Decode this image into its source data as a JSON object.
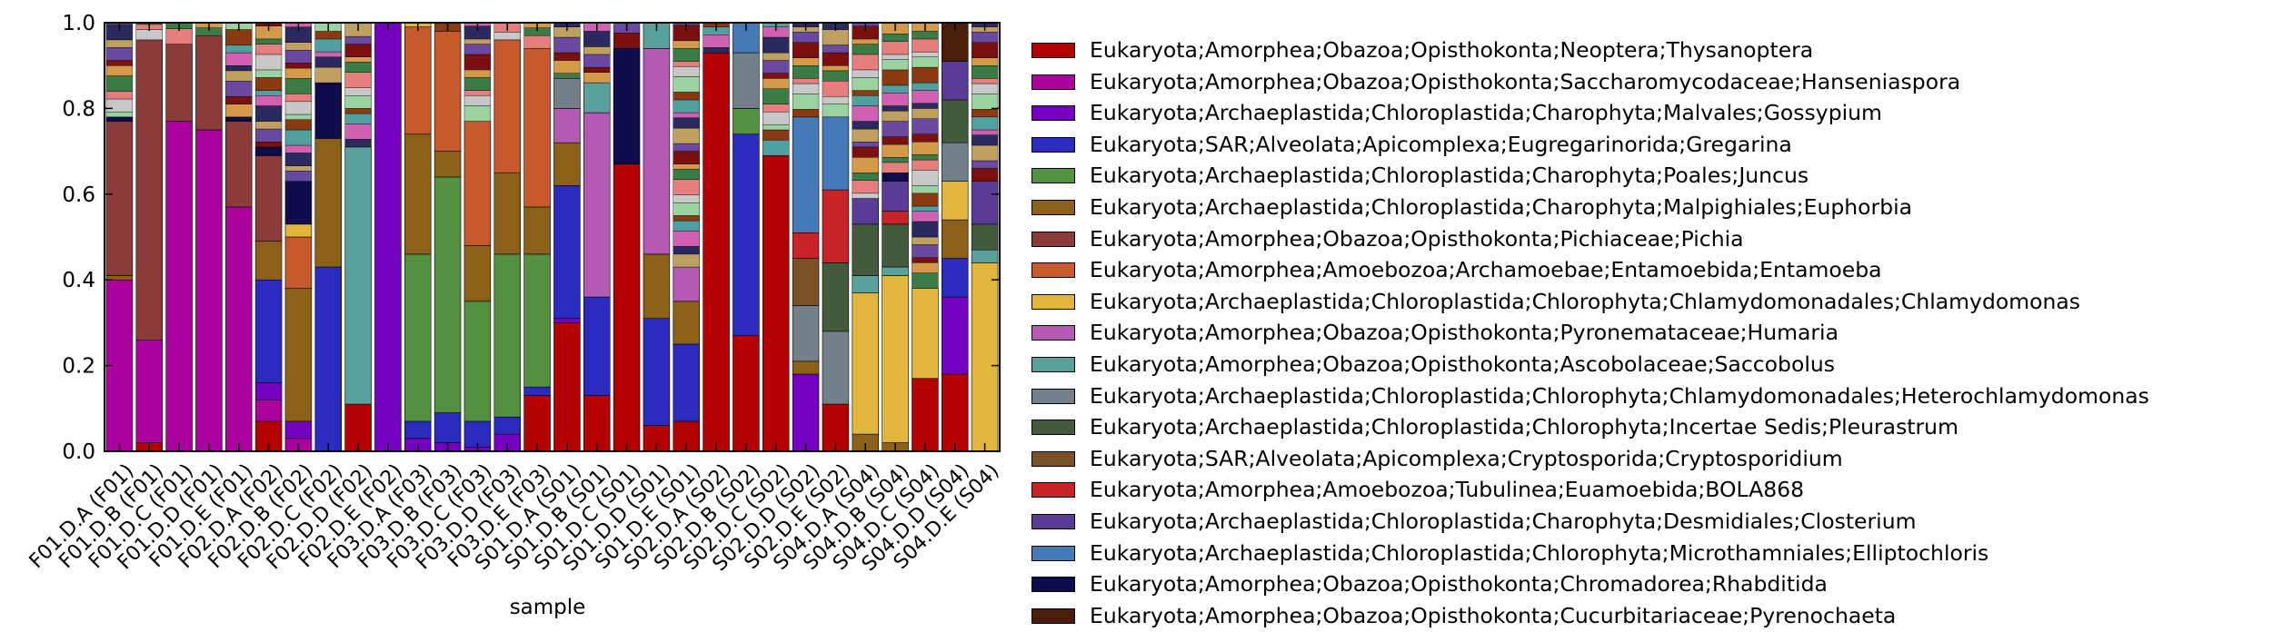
{
  "chart_data": {
    "type": "bar",
    "stacked": true,
    "xlabel": "sample",
    "ylabel": "",
    "ylim": [
      0,
      1
    ],
    "yticks": [
      "0.0",
      "0.2",
      "0.4",
      "0.6",
      "0.8",
      "1.0"
    ],
    "categories": [
      "F01.D.A (F01)",
      "F01.D.B (F01)",
      "F01.D.C (F01)",
      "F01.D.D (F01)",
      "F01.D.E (F01)",
      "F02.D.A (F02)",
      "F02.D.B (F02)",
      "F02.D.C (F02)",
      "F02.D.D (F02)",
      "F02.D.E (F02)",
      "F03.D.A (F03)",
      "F03.D.B (F03)",
      "F03.D.C (F03)",
      "F03.D.D (F03)",
      "F03.D.E (F03)",
      "S01.D.A (S01)",
      "S01.D.B (S01)",
      "S01.D.C (S01)",
      "S01.D.D (S01)",
      "S01.D.E (S01)",
      "S02.D.A (S02)",
      "S02.D.B (S02)",
      "S02.D.C (S02)",
      "S02.D.D (S02)",
      "S02.D.E (S02)",
      "S04.D.A (S04)",
      "S04.D.B (S04)",
      "S04.D.C (S04)",
      "S04.D.D (S04)",
      "S04.D.E (S04)"
    ],
    "series": [
      {
        "name": "Eukaryota;Amorphea;Obazoa;Opisthokonta;Neoptera;Thysanoptera",
        "color": "#b30000",
        "values": [
          0.0,
          0.02,
          0.0,
          0.0,
          0.0,
          0.07,
          0.0,
          0.0,
          0.11,
          0.0,
          0.0,
          0.0,
          0.0,
          0.0,
          0.13,
          0.3,
          0.13,
          0.67,
          0.06,
          0.07,
          0.93,
          0.27,
          0.69,
          0.0,
          0.11,
          0.0,
          0.0,
          0.17,
          0.18,
          0.0
        ]
      },
      {
        "name": "Eukaryota;Amorphea;Obazoa;Opisthokonta;Saccharomycodaceae;Hanseniaspora",
        "color": "#aa009e",
        "values": [
          0.4,
          0.24,
          0.77,
          0.75,
          0.57,
          0.05,
          0.03,
          0.0,
          0.0,
          0.0,
          0.0,
          0.0,
          0.0,
          0.0,
          0.0,
          0.0,
          0.0,
          0.0,
          0.0,
          0.0,
          0.0,
          0.0,
          0.0,
          0.0,
          0.0,
          0.0,
          0.0,
          0.0,
          0.0,
          0.0
        ]
      },
      {
        "name": "Eukaryota;Archaeplastida;Chloroplastida;Charophyta;Malvales;Gossypium",
        "color": "#7400c0",
        "values": [
          0.0,
          0.0,
          0.0,
          0.0,
          0.0,
          0.04,
          0.04,
          0.0,
          0.0,
          1.0,
          0.03,
          0.02,
          0.01,
          0.04,
          0.0,
          0.01,
          0.0,
          0.0,
          0.0,
          0.0,
          0.0,
          0.0,
          0.0,
          0.18,
          0.0,
          0.0,
          0.0,
          0.0,
          0.18,
          0.0
        ]
      },
      {
        "name": "Eukaryota;SAR;Alveolata;Apicomplexa;Eugregarinorida;Gregarina",
        "color": "#2b2bc0",
        "values": [
          0.0,
          0.0,
          0.0,
          0.0,
          0.0,
          0.24,
          0.0,
          0.43,
          0.0,
          0.0,
          0.04,
          0.07,
          0.06,
          0.04,
          0.02,
          0.31,
          0.23,
          0.0,
          0.25,
          0.18,
          0.0,
          0.47,
          0.0,
          0.0,
          0.0,
          0.0,
          0.0,
          0.0,
          0.09,
          0.0
        ]
      },
      {
        "name": "Eukaryota;Archaeplastida;Chloroplastida;Charophyta;Poales;Juncus",
        "color": "#539040",
        "values": [
          0.0,
          0.0,
          0.0,
          0.0,
          0.0,
          0.0,
          0.0,
          0.0,
          0.0,
          0.0,
          0.39,
          0.55,
          0.28,
          0.38,
          0.31,
          0.0,
          0.0,
          0.0,
          0.0,
          0.0,
          0.0,
          0.06,
          0.0,
          0.0,
          0.0,
          0.0,
          0.0,
          0.0,
          0.0,
          0.0
        ]
      },
      {
        "name": "Eukaryota;Archaeplastida;Chloroplastida;Charophyta;Malpighiales;Euphorbia",
        "color": "#8b6018",
        "values": [
          0.01,
          0.0,
          0.0,
          0.0,
          0.0,
          0.09,
          0.31,
          0.3,
          0.0,
          0.0,
          0.28,
          0.06,
          0.13,
          0.19,
          0.11,
          0.1,
          0.0,
          0.0,
          0.15,
          0.1,
          0.0,
          0.0,
          0.0,
          0.03,
          0.0,
          0.04,
          0.02,
          0.0,
          0.09,
          0.0
        ]
      },
      {
        "name": "Eukaryota;Amorphea;Obazoa;Opisthokonta;Pichiaceae;Pichia",
        "color": "#8c3b3b",
        "values": [
          0.36,
          0.7,
          0.18,
          0.22,
          0.2,
          0.2,
          0.0,
          0.0,
          0.0,
          0.0,
          0.0,
          0.0,
          0.0,
          0.0,
          0.0,
          0.0,
          0.0,
          0.0,
          0.0,
          0.0,
          0.0,
          0.0,
          0.0,
          0.0,
          0.0,
          0.0,
          0.0,
          0.0,
          0.0,
          0.0
        ]
      },
      {
        "name": "Eukaryota;Amorphea;Amoebozoa;Archamoebae;Entamoebida;Entamoeba",
        "color": "#c65a2c",
        "values": [
          0.0,
          0.0,
          0.0,
          0.0,
          0.0,
          0.0,
          0.12,
          0.0,
          0.0,
          0.0,
          0.25,
          0.28,
          0.29,
          0.31,
          0.37,
          0.0,
          0.0,
          0.0,
          0.0,
          0.0,
          0.0,
          0.0,
          0.0,
          0.0,
          0.0,
          0.0,
          0.0,
          0.0,
          0.0,
          0.0
        ]
      },
      {
        "name": "Eukaryota;Archaeplastida;Chloroplastida;Chlorophyta;Chlamydomonadales;Chlamydomonas",
        "color": "#e2b53c",
        "values": [
          0.0,
          0.0,
          0.0,
          0.0,
          0.0,
          0.0,
          0.03,
          0.0,
          0.0,
          0.0,
          0.01,
          0.0,
          0.0,
          0.0,
          0.0,
          0.0,
          0.0,
          0.0,
          0.0,
          0.0,
          0.0,
          0.0,
          0.0,
          0.0,
          0.0,
          0.33,
          0.39,
          0.21,
          0.09,
          0.44
        ]
      },
      {
        "name": "Eukaryota;Amorphea;Obazoa;Opisthokonta;Pyronemataceae;Humaria",
        "color": "#b35ab3",
        "values": [
          0.0,
          0.0,
          0.0,
          0.0,
          0.0,
          0.0,
          0.0,
          0.0,
          0.0,
          0.0,
          0.0,
          0.0,
          0.0,
          0.0,
          0.0,
          0.08,
          0.43,
          0.0,
          0.48,
          0.08,
          0.0,
          0.0,
          0.0,
          0.0,
          0.0,
          0.0,
          0.0,
          0.0,
          0.0,
          0.0
        ]
      },
      {
        "name": "Eukaryota;Amorphea;Obazoa;Opisthokonta;Ascobolaceae;Saccobolus",
        "color": "#5aa09b",
        "values": [
          0.0,
          0.0,
          0.0,
          0.0,
          0.0,
          0.0,
          0.0,
          0.0,
          0.6,
          0.0,
          0.0,
          0.0,
          0.0,
          0.0,
          0.0,
          0.0,
          0.07,
          0.0,
          0.06,
          0.0,
          0.0,
          0.0,
          0.0,
          0.0,
          0.0,
          0.04,
          0.02,
          0.0,
          0.0,
          0.03
        ]
      },
      {
        "name": "Eukaryota;Archaeplastida;Chloroplastida;Chlorophyta;Chlamydomonadales;Heterochlamydomonas",
        "color": "#748089",
        "values": [
          0.0,
          0.0,
          0.0,
          0.0,
          0.0,
          0.0,
          0.0,
          0.0,
          0.0,
          0.0,
          0.0,
          0.0,
          0.0,
          0.0,
          0.0,
          0.07,
          0.0,
          0.0,
          0.0,
          0.0,
          0.0,
          0.13,
          0.0,
          0.13,
          0.17,
          0.0,
          0.0,
          0.0,
          0.09,
          0.0
        ]
      },
      {
        "name": "Eukaryota;Archaeplastida;Chloroplastida;Chlorophyta;Incertae Sedis;Pleurastrum",
        "color": "#435a3c",
        "values": [
          0.0,
          0.0,
          0.0,
          0.0,
          0.0,
          0.0,
          0.0,
          0.0,
          0.0,
          0.0,
          0.0,
          0.0,
          0.0,
          0.0,
          0.0,
          0.0,
          0.0,
          0.0,
          0.0,
          0.0,
          0.0,
          0.0,
          0.0,
          0.0,
          0.16,
          0.12,
          0.1,
          0.0,
          0.1,
          0.06
        ]
      },
      {
        "name": "Eukaryota;SAR;Alveolata;Apicomplexa;Cryptosporida;Cryptosporidium",
        "color": "#7a5028",
        "values": [
          0.0,
          0.0,
          0.0,
          0.0,
          0.0,
          0.0,
          0.0,
          0.0,
          0.0,
          0.0,
          0.0,
          0.0,
          0.0,
          0.0,
          0.0,
          0.0,
          0.0,
          0.0,
          0.0,
          0.0,
          0.0,
          0.0,
          0.0,
          0.11,
          0.0,
          0.0,
          0.0,
          0.0,
          0.0,
          0.0
        ]
      },
      {
        "name": "Eukaryota;Amorphea;Amoebozoa;Tubulinea;Euamoebida;BOLA868",
        "color": "#c82428",
        "values": [
          0.0,
          0.0,
          0.0,
          0.0,
          0.0,
          0.0,
          0.0,
          0.0,
          0.0,
          0.0,
          0.0,
          0.0,
          0.0,
          0.0,
          0.0,
          0.0,
          0.0,
          0.0,
          0.0,
          0.0,
          0.0,
          0.0,
          0.0,
          0.06,
          0.17,
          0.0,
          0.03,
          0.0,
          0.0,
          0.0
        ]
      },
      {
        "name": "Eukaryota;Archaeplastida;Chloroplastida;Charophyta;Desmidiales;Closterium",
        "color": "#5a3c96",
        "values": [
          0.0,
          0.0,
          0.0,
          0.0,
          0.0,
          0.0,
          0.0,
          0.0,
          0.0,
          0.0,
          0.0,
          0.0,
          0.0,
          0.0,
          0.0,
          0.0,
          0.0,
          0.0,
          0.0,
          0.0,
          0.0,
          0.0,
          0.0,
          0.0,
          0.0,
          0.06,
          0.07,
          0.0,
          0.09,
          0.1
        ]
      },
      {
        "name": "Eukaryota;Archaeplastida;Chloroplastida;Chlorophyta;Microthamniales;Elliptochloris",
        "color": "#4679b8",
        "values": [
          0.0,
          0.0,
          0.0,
          0.0,
          0.0,
          0.0,
          0.0,
          0.0,
          0.0,
          0.0,
          0.0,
          0.0,
          0.0,
          0.0,
          0.0,
          0.0,
          0.0,
          0.0,
          0.0,
          0.0,
          0.0,
          0.07,
          0.0,
          0.27,
          0.17,
          0.0,
          0.0,
          0.0,
          0.0,
          0.0
        ]
      },
      {
        "name": "Eukaryota;Amorphea;Obazoa;Opisthokonta;Chromadorea;Rhabditida",
        "color": "#0e0c4a",
        "values": [
          0.01,
          0.0,
          0.0,
          0.0,
          0.01,
          0.02,
          0.1,
          0.13,
          0.0,
          0.0,
          0.0,
          0.0,
          0.0,
          0.0,
          0.0,
          0.0,
          0.0,
          0.27,
          0.0,
          0.0,
          0.0,
          0.0,
          0.0,
          0.0,
          0.0,
          0.0,
          0.02,
          0.0,
          0.0,
          0.0
        ]
      },
      {
        "name": "Eukaryota;Amorphea;Obazoa;Opisthokonta;Cucurbitariaceae;Pyrenochaeta",
        "color": "#4a1e0a",
        "values": [
          0.0,
          0.0,
          0.0,
          0.0,
          0.0,
          0.0,
          0.0,
          0.0,
          0.0,
          0.0,
          0.0,
          0.0,
          0.0,
          0.0,
          0.0,
          0.0,
          0.0,
          0.0,
          0.0,
          0.0,
          0.0,
          0.0,
          0.0,
          0.0,
          0.0,
          0.0,
          0.0,
          0.0,
          0.09,
          0.0
        ]
      }
    ],
    "other_color_cycle": [
      "#9bd3a0",
      "#c8c8c8",
      "#e67e7e",
      "#3c7a46",
      "#d49a4a",
      "#7a1010",
      "#6a4aa0",
      "#c0a060",
      "#2a2a60",
      "#d060b0",
      "#50a0a0",
      "#8a3a10"
    ]
  },
  "legend": {
    "items": [
      {
        "label": "Eukaryota;Amorphea;Obazoa;Opisthokonta;Neoptera;Thysanoptera",
        "color": "#b30000"
      },
      {
        "label": "Eukaryota;Amorphea;Obazoa;Opisthokonta;Saccharomycodaceae;Hanseniaspora",
        "color": "#aa009e"
      },
      {
        "label": "Eukaryota;Archaeplastida;Chloroplastida;Charophyta;Malvales;Gossypium",
        "color": "#7400c0"
      },
      {
        "label": "Eukaryota;SAR;Alveolata;Apicomplexa;Eugregarinorida;Gregarina",
        "color": "#2b2bc0"
      },
      {
        "label": "Eukaryota;Archaeplastida;Chloroplastida;Charophyta;Poales;Juncus",
        "color": "#539040"
      },
      {
        "label": "Eukaryota;Archaeplastida;Chloroplastida;Charophyta;Malpighiales;Euphorbia",
        "color": "#8b6018"
      },
      {
        "label": "Eukaryota;Amorphea;Obazoa;Opisthokonta;Pichiaceae;Pichia",
        "color": "#8c3b3b"
      },
      {
        "label": "Eukaryota;Amorphea;Amoebozoa;Archamoebae;Entamoebida;Entamoeba",
        "color": "#c65a2c"
      },
      {
        "label": "Eukaryota;Archaeplastida;Chloroplastida;Chlorophyta;Chlamydomonadales;Chlamydomonas",
        "color": "#e2b53c"
      },
      {
        "label": "Eukaryota;Amorphea;Obazoa;Opisthokonta;Pyronemataceae;Humaria",
        "color": "#b35ab3"
      },
      {
        "label": "Eukaryota;Amorphea;Obazoa;Opisthokonta;Ascobolaceae;Saccobolus",
        "color": "#5aa09b"
      },
      {
        "label": "Eukaryota;Archaeplastida;Chloroplastida;Chlorophyta;Chlamydomonadales;Heterochlamydomonas",
        "color": "#748089"
      },
      {
        "label": "Eukaryota;Archaeplastida;Chloroplastida;Chlorophyta;Incertae Sedis;Pleurastrum",
        "color": "#435a3c"
      },
      {
        "label": "Eukaryota;SAR;Alveolata;Apicomplexa;Cryptosporida;Cryptosporidium",
        "color": "#7a5028"
      },
      {
        "label": "Eukaryota;Amorphea;Amoebozoa;Tubulinea;Euamoebida;BOLA868",
        "color": "#c82428"
      },
      {
        "label": "Eukaryota;Archaeplastida;Chloroplastida;Charophyta;Desmidiales;Closterium",
        "color": "#5a3c96"
      },
      {
        "label": "Eukaryota;Archaeplastida;Chloroplastida;Chlorophyta;Microthamniales;Elliptochloris",
        "color": "#4679b8"
      },
      {
        "label": "Eukaryota;Amorphea;Obazoa;Opisthokonta;Chromadorea;Rhabditida",
        "color": "#0e0c4a"
      },
      {
        "label": "Eukaryota;Amorphea;Obazoa;Opisthokonta;Cucurbitariaceae;Pyrenochaeta",
        "color": "#4a1e0a"
      }
    ]
  }
}
